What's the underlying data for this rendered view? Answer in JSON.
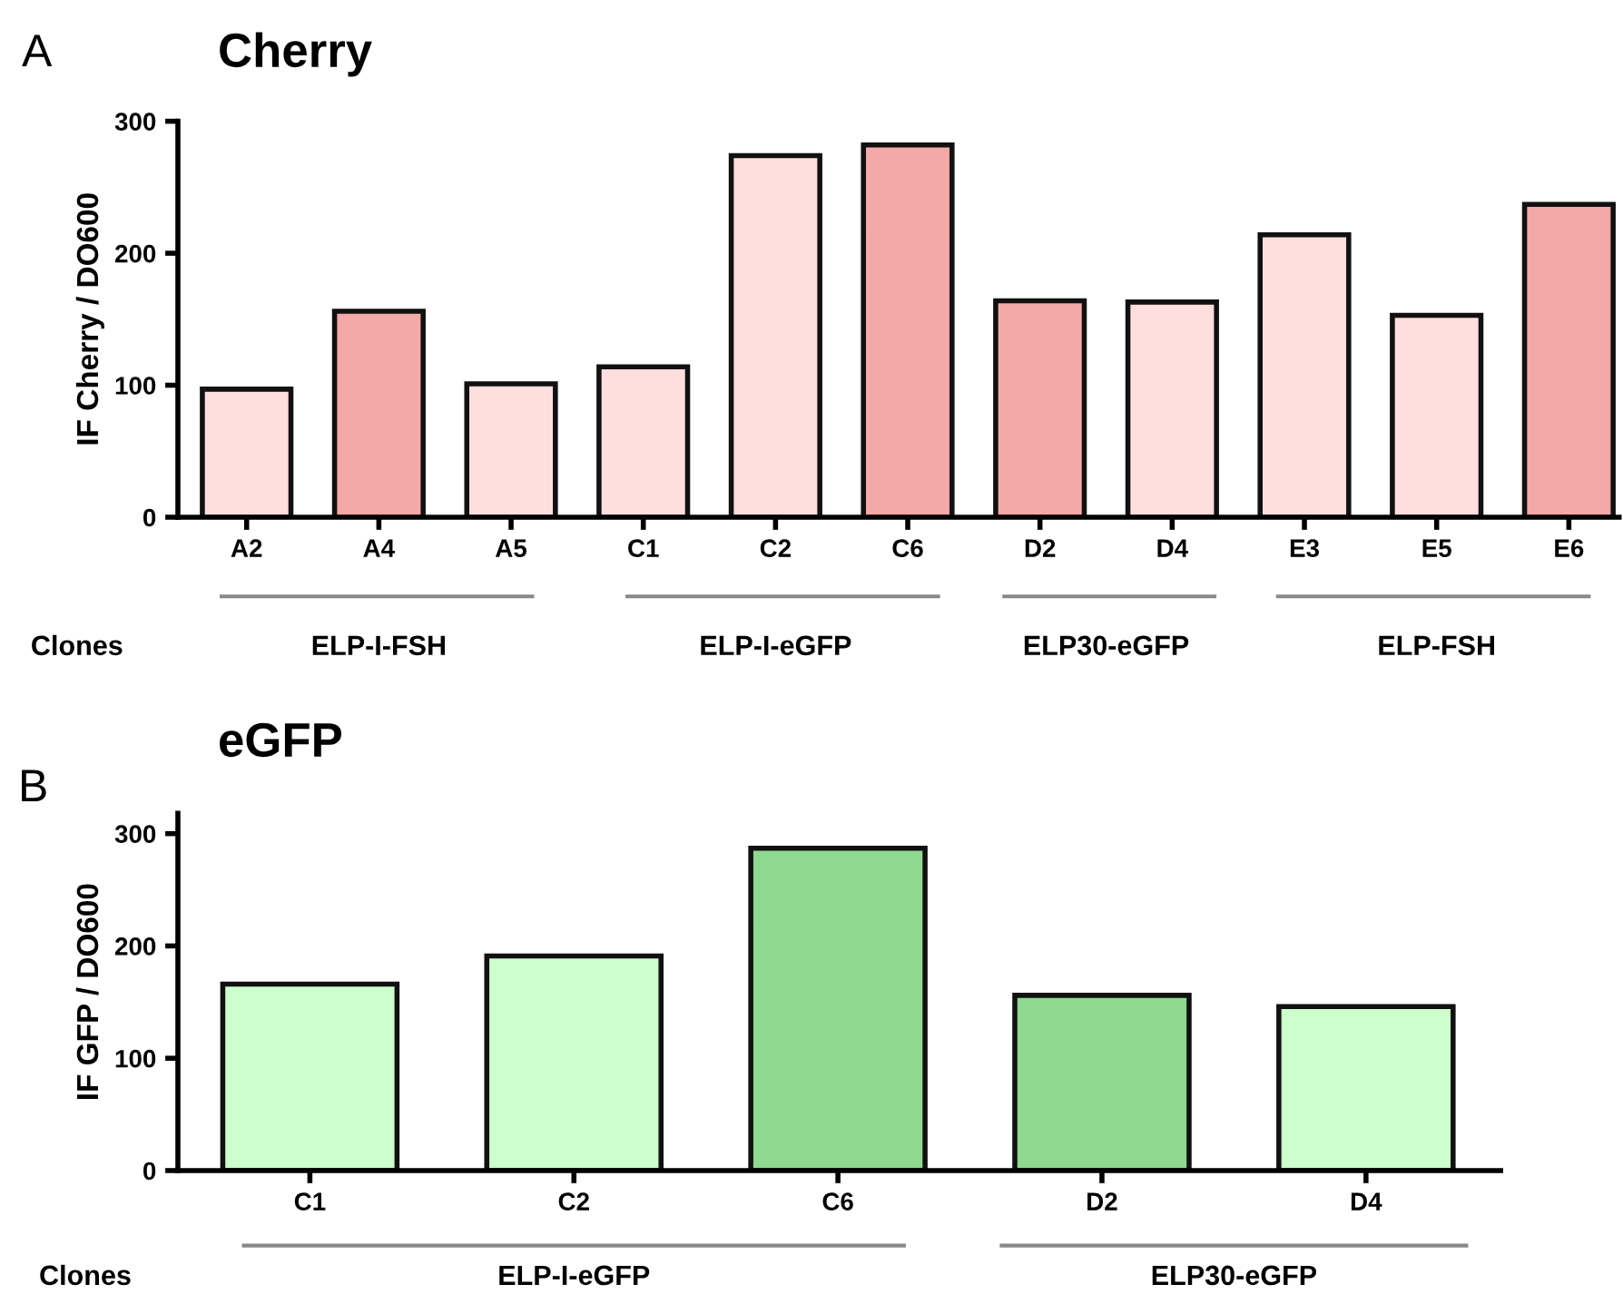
{
  "chart_data": [
    {
      "type": "bar",
      "title": "Cherry",
      "ylabel": "IF Cherry / DO600",
      "categories": [
        "A2",
        "A4",
        "A5",
        "C1",
        "C2",
        "C6",
        "D2",
        "D4",
        "E3",
        "E5",
        "E6"
      ],
      "values": [
        97,
        156,
        101,
        114,
        274,
        282,
        164,
        163,
        214,
        153,
        237
      ],
      "colors": [
        "#ffdede",
        "#f5a8a8",
        "#ffdede",
        "#ffdede",
        "#ffdede",
        "#f5a8a8",
        "#f5a8a8",
        "#ffdede",
        "#ffdede",
        "#ffdede",
        "#f5a8a8"
      ],
      "ylim": [
        0,
        300
      ],
      "yticks": [
        0,
        100,
        200,
        300
      ],
      "grid": false,
      "legend": false,
      "annotations": [
        "A",
        "Clones",
        "ELP-I-FSH",
        "ELP-I-eGFP",
        "ELP30-eGFP",
        "ELP-FSH"
      ]
    },
    {
      "type": "bar",
      "title": "eGFP",
      "ylabel": "IF GFP / DO600",
      "categories": [
        "C1",
        "C2",
        "C6",
        "D2",
        "D4"
      ],
      "values": [
        166,
        191,
        287,
        156,
        146
      ],
      "colors": [
        "#ccffcc",
        "#ccffcc",
        "#8fd88f",
        "#8fd88f",
        "#ccffcc"
      ],
      "ylim": [
        0,
        318
      ],
      "yticks": [
        0,
        100,
        200,
        300
      ],
      "grid": false,
      "legend": false,
      "annotations": [
        "B",
        "Clones",
        "ELP-I-eGFP",
        "ELP30-eGFP"
      ]
    }
  ]
}
